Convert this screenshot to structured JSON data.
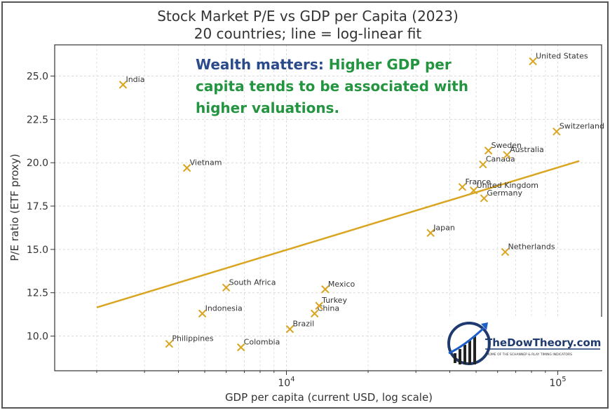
{
  "chart_data": {
    "type": "scatter",
    "title": "Stock Market P/E vs GDP per Capita (2023)",
    "subtitle": "20 countries; line = log-linear fit",
    "xlabel": "GDP per capita (current USD, log scale)",
    "ylabel": "P/E ratio (ETF proxy)",
    "x_scale": "log",
    "xlim": [
      1400,
      145000
    ],
    "ylim": [
      8.0,
      26.8
    ],
    "grid": true,
    "x_major_ticks": [
      {
        "value": 10000,
        "base": "10",
        "exp": "4"
      },
      {
        "value": 100000,
        "base": "10",
        "exp": "5"
      }
    ],
    "y_ticks": [
      10.0,
      12.5,
      15.0,
      17.5,
      20.0,
      22.5,
      25.0
    ],
    "y_tick_labels": [
      "10.0",
      "12.5",
      "15.0",
      "17.5",
      "20.0",
      "22.5",
      "25.0"
    ],
    "marker_color": "#DAA520",
    "fit_line": {
      "label": "log-linear fit",
      "color": "#DAA520",
      "points": [
        {
          "x": 2000,
          "y": 11.65
        },
        {
          "x": 120000,
          "y": 20.1
        }
      ]
    },
    "points": [
      {
        "country": "India",
        "x": 2500,
        "y": 24.5
      },
      {
        "country": "Vietnam",
        "x": 4300,
        "y": 19.7
      },
      {
        "country": "Philippines",
        "x": 3700,
        "y": 9.55
      },
      {
        "country": "Indonesia",
        "x": 4900,
        "y": 11.3
      },
      {
        "country": "South Africa",
        "x": 6000,
        "y": 12.8
      },
      {
        "country": "Colombia",
        "x": 6800,
        "y": 9.35
      },
      {
        "country": "Brazil",
        "x": 10300,
        "y": 10.4
      },
      {
        "country": "China",
        "x": 12700,
        "y": 11.3
      },
      {
        "country": "Turkey",
        "x": 13200,
        "y": 11.75
      },
      {
        "country": "Mexico",
        "x": 13900,
        "y": 12.7
      },
      {
        "country": "Japan",
        "x": 34000,
        "y": 15.95
      },
      {
        "country": "France",
        "x": 44500,
        "y": 18.6
      },
      {
        "country": "United Kingdom",
        "x": 49000,
        "y": 18.4
      },
      {
        "country": "Canada",
        "x": 53000,
        "y": 19.9
      },
      {
        "country": "Germany",
        "x": 53500,
        "y": 17.95
      },
      {
        "country": "Sweden",
        "x": 55500,
        "y": 20.7
      },
      {
        "country": "Australia",
        "x": 65000,
        "y": 20.45
      },
      {
        "country": "Netherlands",
        "x": 64000,
        "y": 14.85
      },
      {
        "country": "United States",
        "x": 81000,
        "y": 25.85
      },
      {
        "country": "Switzerland",
        "x": 99000,
        "y": 21.8
      }
    ]
  },
  "annotation": {
    "lead": "Wealth matters:",
    "lead_color": "#2B4A8B",
    "text_color": "#23943F",
    "line1_rest": " Higher GDP per",
    "line2": "capita tends to be associated with",
    "line3": "higher valuations."
  },
  "watermark": {
    "brand": "TheDowTheory.com",
    "tagline": "HOME OF THE SCHANNEP & RLAY TIMING INDICATORS"
  }
}
